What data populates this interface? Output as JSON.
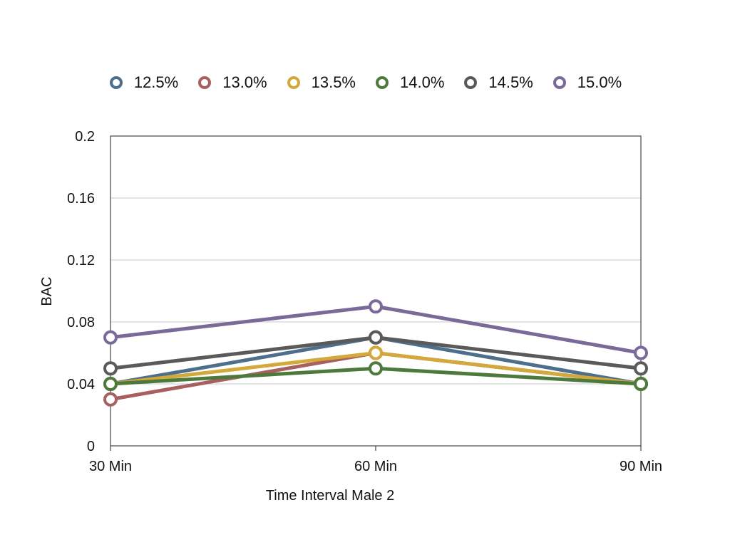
{
  "chart_data": {
    "type": "line",
    "xlabel": "Time Interval Male 2",
    "ylabel": "BAC",
    "categories": [
      "30 Min",
      "60 Min",
      "90 Min"
    ],
    "ylim": [
      0,
      0.2
    ],
    "yticks": [
      "0",
      "0.04",
      "0.08",
      "0.12",
      "0.16",
      "0.2"
    ],
    "grid": true,
    "legend_position": "top",
    "series": [
      {
        "name": "12.5%",
        "color": "#4e6f8c",
        "values": [
          0.04,
          0.07,
          0.04
        ]
      },
      {
        "name": "13.0%",
        "color": "#a85f5f",
        "values": [
          0.03,
          0.06,
          0.04
        ]
      },
      {
        "name": "13.5%",
        "color": "#d2a93a",
        "values": [
          0.04,
          0.06,
          0.04
        ]
      },
      {
        "name": "14.0%",
        "color": "#4d7a3c",
        "values": [
          0.04,
          0.05,
          0.04
        ]
      },
      {
        "name": "14.5%",
        "color": "#5a5a5a",
        "values": [
          0.05,
          0.07,
          0.05
        ]
      },
      {
        "name": "15.0%",
        "color": "#7a6a9a",
        "values": [
          0.07,
          0.09,
          0.06
        ]
      }
    ]
  }
}
